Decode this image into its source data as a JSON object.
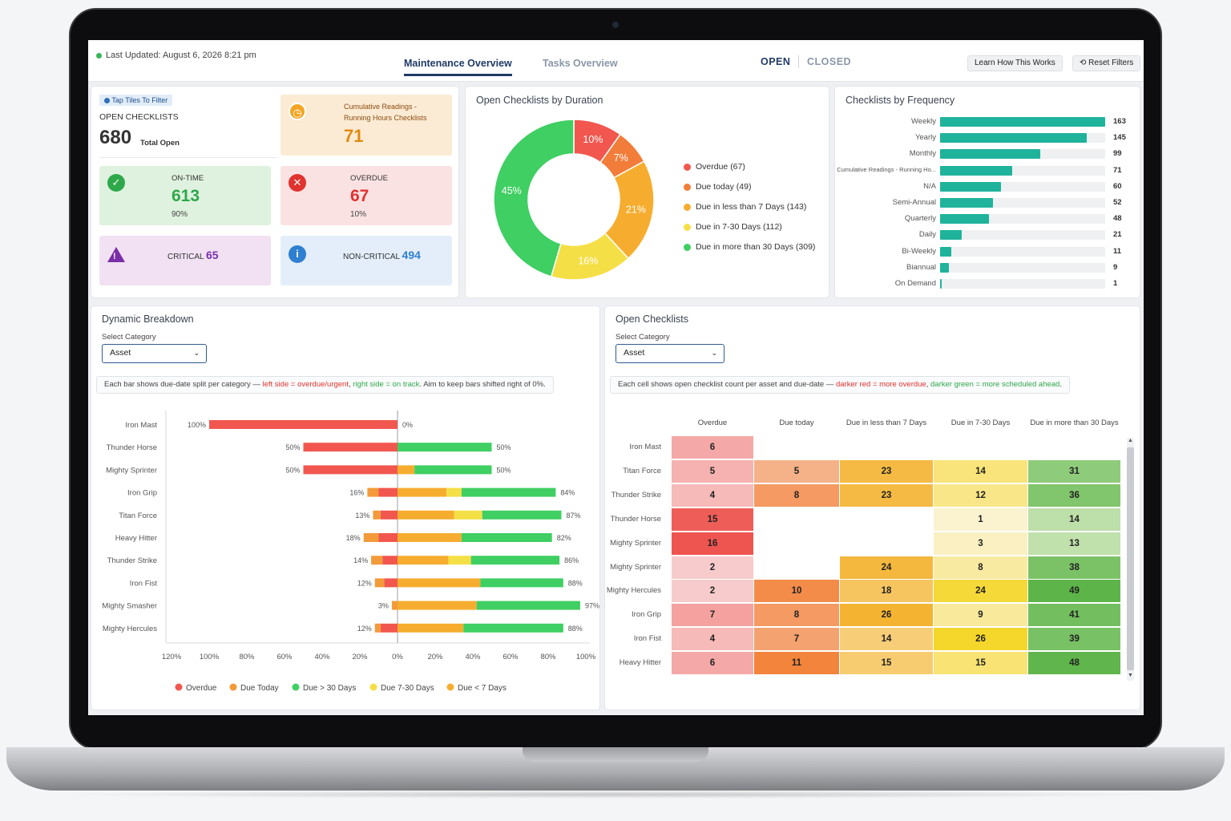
{
  "header": {
    "last_updated": "Last Updated: August 6, 2026 8:21 pm",
    "tabs": [
      {
        "label": "Maintenance Overview",
        "active": true
      },
      {
        "label": "Tasks Overview",
        "active": false
      }
    ],
    "toggle": {
      "open": "OPEN",
      "closed": "CLOSED",
      "active": "OPEN"
    },
    "learn_label": "Learn How This Works",
    "reset_label": "Reset Filters"
  },
  "summary": {
    "filter_hint": "Tap Tiles To Filter",
    "open_label": "OPEN CHECKLISTS",
    "total": "680",
    "total_label": "Total Open",
    "cumulative_label": "Cumulative Readings - Running Hours Checklists",
    "cumulative_value": "71",
    "ontime_label": "ON-TIME",
    "ontime_value": "613",
    "ontime_pct": "90%",
    "overdue_label": "OVERDUE",
    "overdue_value": "67",
    "overdue_pct": "10%",
    "critical_label": "CRITICAL",
    "critical_value": "65",
    "noncritical_label": "NON-CRITICAL",
    "noncritical_value": "494",
    "colors": {
      "ontime": "#2ea84b",
      "overdue": "#e0332f",
      "critical": "#7b2ea8",
      "noncritical": "#2f7fd0",
      "cumulative": "#e08a12"
    }
  },
  "duration": {
    "title": "Open Checklists by Duration",
    "chart_data": {
      "type": "pie",
      "categories": [
        "Overdue",
        "Due today",
        "Due in less than 7 Days",
        "Due in 7-30 Days",
        "Due in more than 30 Days"
      ],
      "values": [
        67,
        49,
        143,
        112,
        309
      ],
      "percent_labels": [
        "10%",
        "7%",
        "21%",
        "16%",
        "45%"
      ],
      "colors": [
        "#f1574f",
        "#f27d3a",
        "#f6ad2f",
        "#f5df46",
        "#3fcf62"
      ]
    },
    "legend": [
      "Overdue (67)",
      "Due today (49)",
      "Due in less than 7 Days (143)",
      "Due in 7-30 Days (112)",
      "Due in more than 30 Days (309)"
    ]
  },
  "frequency": {
    "title": "Checklists by Frequency",
    "chart_data": {
      "type": "bar",
      "categories": [
        "Weekly",
        "Yearly",
        "Monthly",
        "Cumulative Readings - Running Ho...",
        "N/A",
        "Semi-Annual",
        "Quarterly",
        "Daily",
        "Bi-Weekly",
        "Biannual",
        "On Demand"
      ],
      "values": [
        163,
        145,
        99,
        71,
        60,
        52,
        48,
        21,
        11,
        9,
        1
      ],
      "xlim": [
        0,
        163
      ]
    }
  },
  "breakdown": {
    "title": "Dynamic Breakdown",
    "select_label": "Select Category",
    "select_value": "Asset",
    "note_prefix": "Each bar shows due-date split per category — ",
    "note_left": "left side = overdue/urgent",
    "note_mid": ", ",
    "note_right": "right side = on track",
    "note_suffix": ". Aim to keep bars shifted right of 0%.",
    "chart_data": {
      "type": "bar",
      "orientation": "diverging-stacked",
      "categories": [
        "Iron Mast",
        "Thunder Horse",
        "Mighty Sprinter",
        "Iron Grip",
        "Titan Force",
        "Heavy Hitter",
        "Thunder Strike",
        "Iron Fist",
        "Mighty Smasher",
        "Mighty Hercules"
      ],
      "left_labels": [
        "100%",
        "50%",
        "50%",
        "16%",
        "13%",
        "18%",
        "14%",
        "12%",
        "3%",
        "12%"
      ],
      "right_labels": [
        "0%",
        "50%",
        "50%",
        "84%",
        "87%",
        "82%",
        "86%",
        "88%",
        "97%",
        "88%"
      ],
      "series": [
        {
          "name": "Overdue",
          "color": "#f1574f",
          "side": "left",
          "values": [
            100,
            50,
            50,
            10,
            9,
            10,
            8,
            7,
            0,
            9
          ]
        },
        {
          "name": "Due Today",
          "color": "#f39a3a",
          "side": "left",
          "values": [
            0,
            0,
            0,
            6,
            4,
            8,
            6,
            5,
            3,
            3
          ]
        },
        {
          "name": "Due < 7 Days",
          "color": "#f6ad2f",
          "side": "right",
          "values": [
            0,
            0,
            9,
            26,
            30,
            34,
            27,
            44,
            42,
            35
          ]
        },
        {
          "name": "Due 7-30 Days",
          "color": "#f5df46",
          "side": "right",
          "values": [
            0,
            0,
            0,
            8,
            15,
            0,
            12,
            0,
            0,
            0
          ]
        },
        {
          "name": "Due > 30 Days",
          "color": "#3fcf62",
          "side": "right",
          "values": [
            0,
            50,
            41,
            50,
            42,
            48,
            47,
            44,
            55,
            53
          ]
        }
      ],
      "xticks": [
        "120%",
        "100%",
        "80%",
        "60%",
        "40%",
        "20%",
        "0%",
        "20%",
        "40%",
        "60%",
        "80%",
        "100%",
        "120%"
      ],
      "xlim": [
        -120,
        120
      ],
      "legend": [
        "Overdue",
        "Due Today",
        "Due > 30 Days",
        "Due 7-30 Days",
        "Due < 7 Days"
      ]
    }
  },
  "heatmap": {
    "title": "Open Checklists",
    "select_label": "Select Category",
    "select_value": "Asset",
    "note_prefix": "Each cell shows open checklist count per asset and due-date — ",
    "note_red": "darker red = more overdue",
    "note_mid": ", ",
    "note_green": "darker green = more scheduled ahead",
    "note_suffix": ".",
    "chart_data": {
      "type": "heatmap",
      "columns": [
        "Overdue",
        "Due today",
        "Due in less than 7 Days",
        "Due in 7-30 Days",
        "Due in more than 30 Days"
      ],
      "rows": [
        "Iron Mast",
        "Titan Force",
        "Thunder Strike",
        "Thunder Horse",
        "Mighty Sprinter",
        "Mighty Sprinter",
        "Mighty Hercules",
        "Iron Grip",
        "Iron Fist",
        "Heavy Hitter"
      ],
      "values": [
        [
          6,
          null,
          null,
          null,
          null
        ],
        [
          5,
          5,
          23,
          14,
          31
        ],
        [
          4,
          8,
          23,
          12,
          36
        ],
        [
          15,
          null,
          null,
          1,
          14
        ],
        [
          16,
          null,
          null,
          3,
          13
        ],
        [
          2,
          null,
          24,
          8,
          38
        ],
        [
          2,
          10,
          18,
          24,
          49
        ],
        [
          7,
          8,
          26,
          9,
          41
        ],
        [
          4,
          7,
          14,
          26,
          39
        ],
        [
          6,
          11,
          15,
          15,
          48
        ]
      ]
    }
  }
}
